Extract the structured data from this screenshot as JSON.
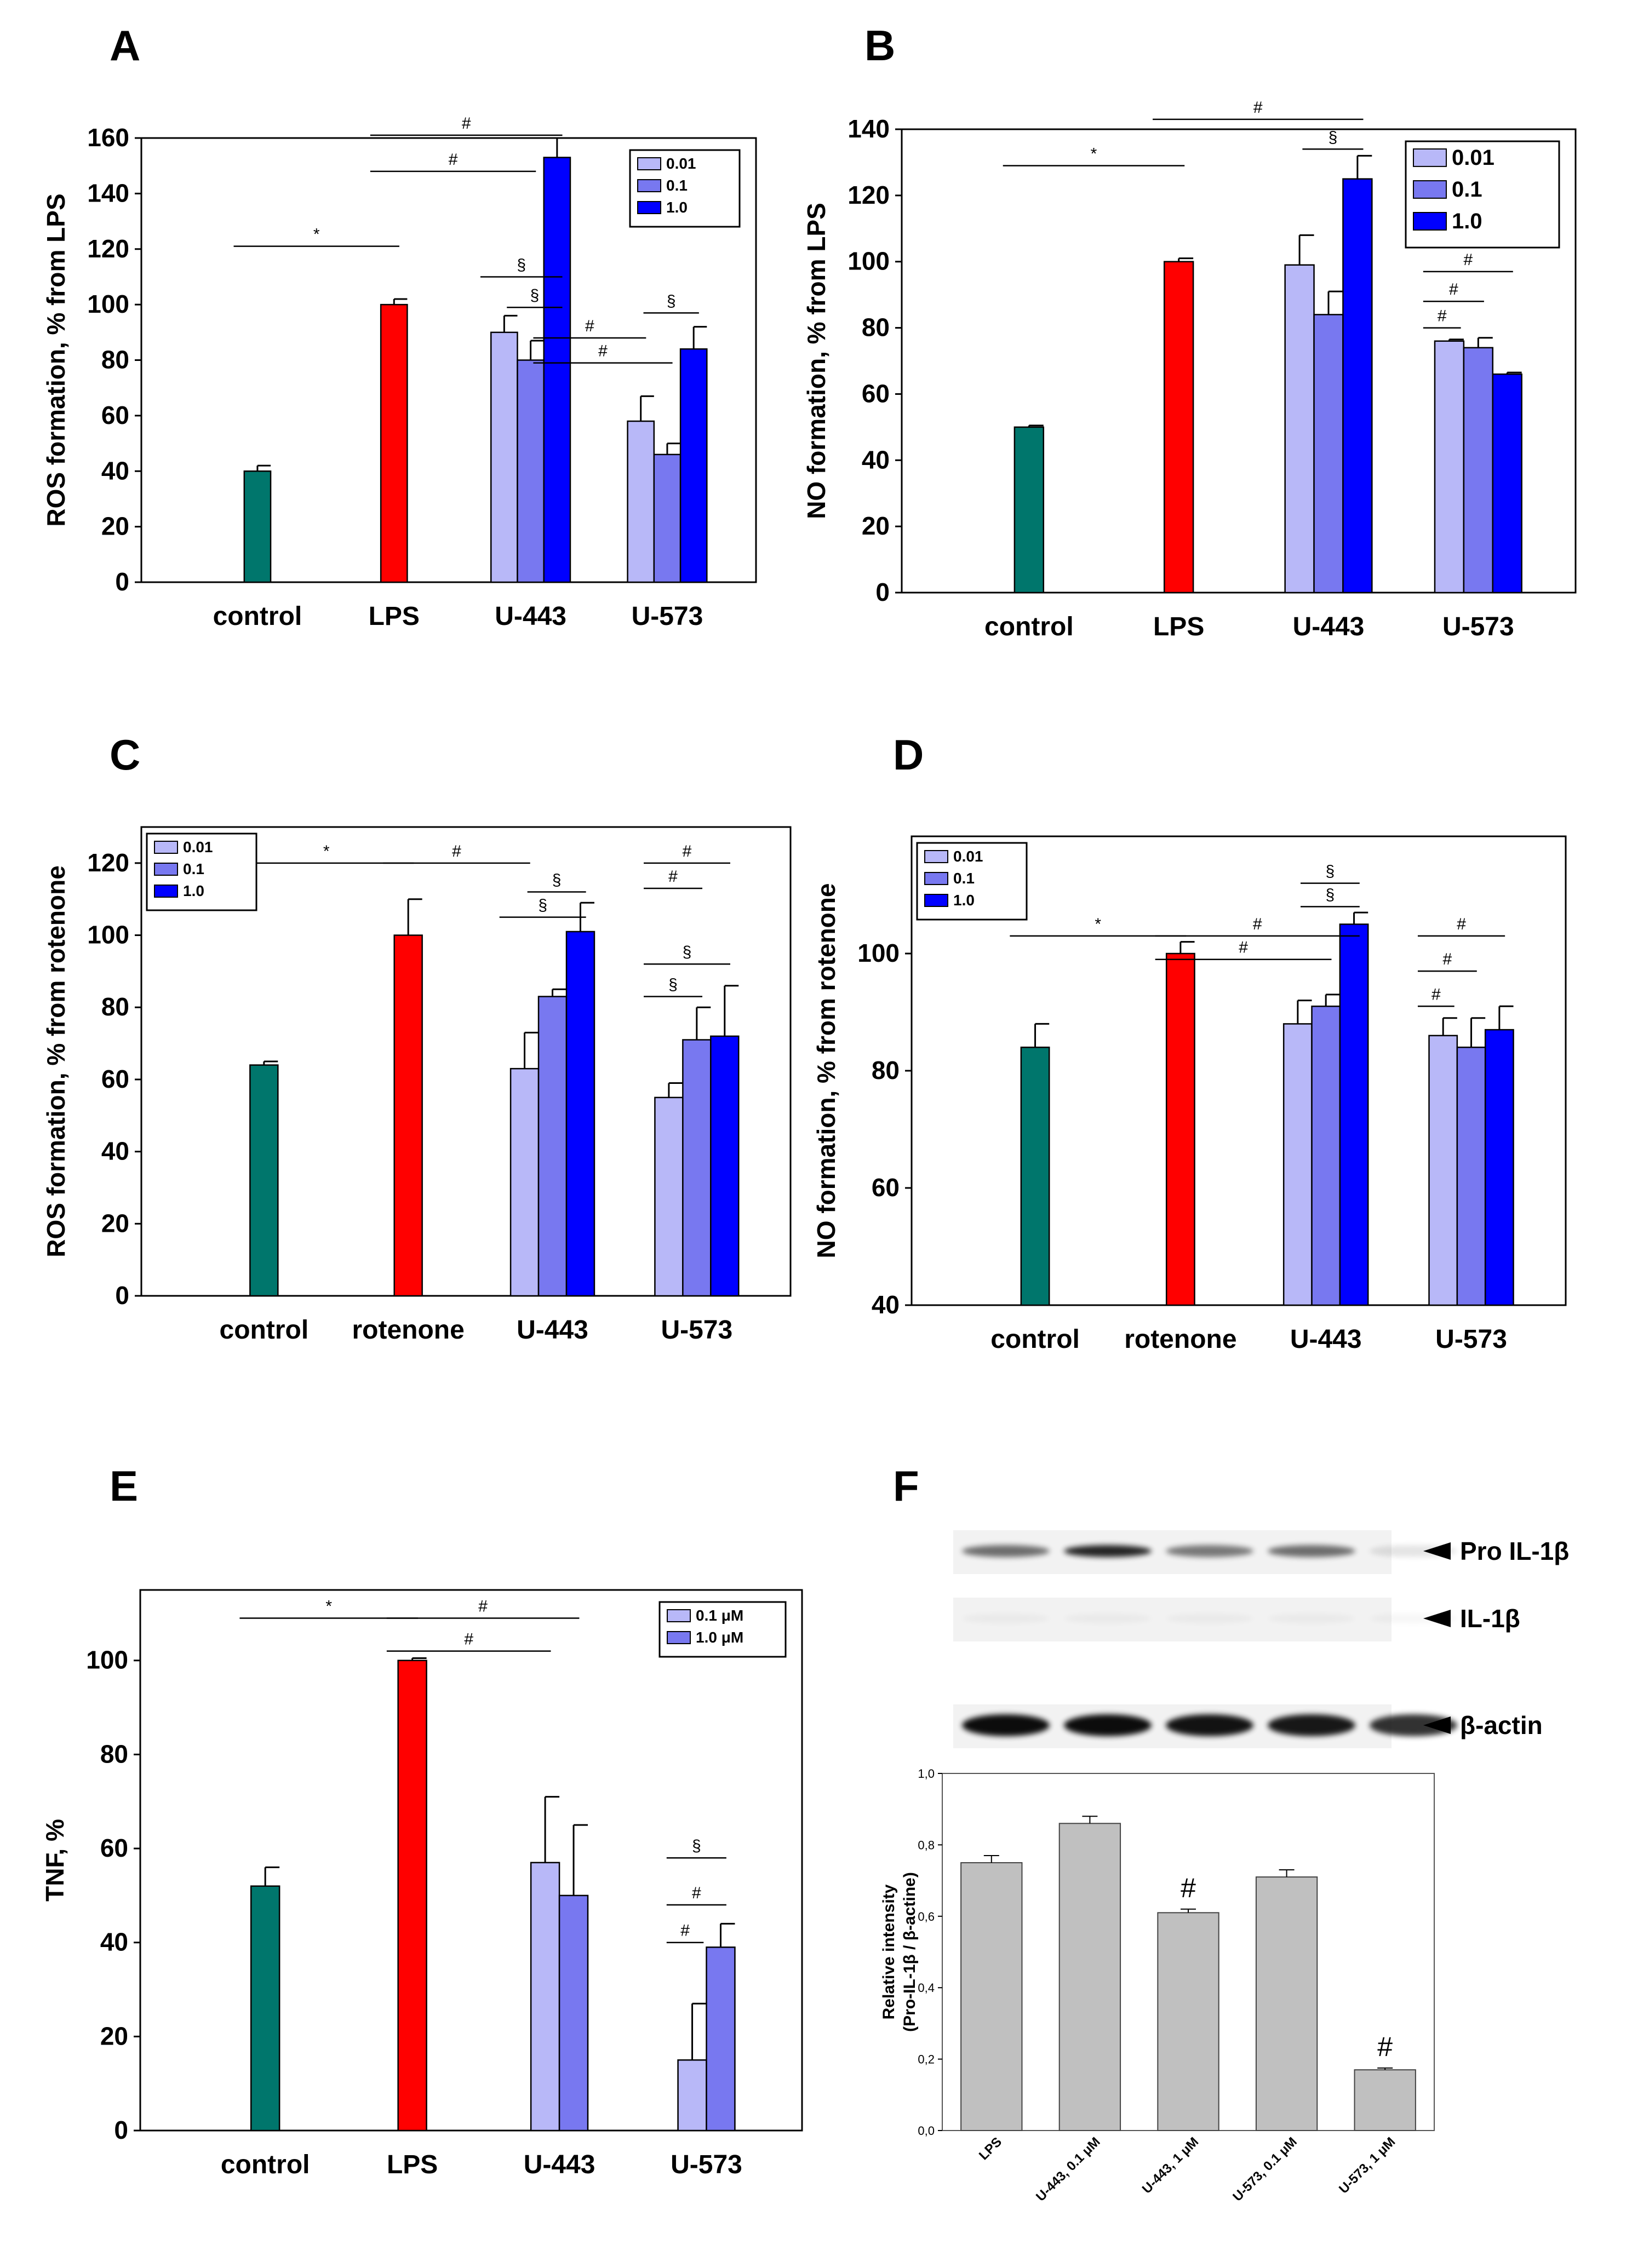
{
  "colors": {
    "control": "#00766C",
    "stimulus": "#FF0000",
    "c001": "#B8B8F8",
    "c01": "#7878F0",
    "c10": "#0000FF",
    "gray": "#C0C0C0",
    "blot_band": "#000000"
  },
  "chart_data": [
    {
      "id": "A",
      "panel_label": "A",
      "type": "bar",
      "ylabel": "ROS formation, % from LPS",
      "ylim": [
        0,
        160
      ],
      "yticks": [
        0,
        20,
        40,
        60,
        80,
        100,
        120,
        140,
        160
      ],
      "categories": [
        "control",
        "LPS",
        "U-443",
        "U-573"
      ],
      "legend": [
        "0.01",
        "0.1",
        "1.0"
      ],
      "legend_position": "top-right",
      "bars": [
        {
          "group": 0,
          "slot": "single",
          "color": "control",
          "value": 40,
          "err": 2
        },
        {
          "group": 1,
          "slot": "single",
          "color": "stimulus",
          "value": 100,
          "err": 2
        },
        {
          "group": 2,
          "slot": "s0",
          "color": "c001",
          "value": 90,
          "err": 6
        },
        {
          "group": 2,
          "slot": "s1",
          "color": "c01",
          "value": 80,
          "err": 7
        },
        {
          "group": 2,
          "slot": "s2",
          "color": "c10",
          "value": 153,
          "err": 7
        },
        {
          "group": 3,
          "slot": "s0",
          "color": "c001",
          "value": 58,
          "err": 9
        },
        {
          "group": 3,
          "slot": "s1",
          "color": "c01",
          "value": 46,
          "err": 4
        },
        {
          "group": 3,
          "slot": "s2",
          "color": "c10",
          "value": 84,
          "err": 8
        }
      ],
      "annotations": [
        {
          "symbol": "*",
          "x1": [
            0,
            "single"
          ],
          "x2": [
            1,
            "single"
          ],
          "y": 121
        },
        {
          "symbol": "#",
          "x1": [
            1,
            "single"
          ],
          "x2": [
            2,
            "s1"
          ],
          "y": 148
        },
        {
          "symbol": "#",
          "x1": [
            1,
            "single"
          ],
          "x2": [
            2,
            "s2"
          ],
          "y": 161
        },
        {
          "symbol": "§",
          "x1": [
            2,
            "s0"
          ],
          "x2": [
            2,
            "s2"
          ],
          "y": 110
        },
        {
          "symbol": "§",
          "x1": [
            2,
            "s1"
          ],
          "x2": [
            2,
            "s2"
          ],
          "y": 99
        },
        {
          "symbol": "#",
          "x1": [
            2,
            "s2"
          ],
          "x2": [
            3,
            "s0"
          ],
          "y": 88
        },
        {
          "symbol": "#",
          "x1": [
            2,
            "s2"
          ],
          "x2": [
            3,
            "s1"
          ],
          "y": 79
        },
        {
          "symbol": "§",
          "x1": [
            3,
            "s1"
          ],
          "x2": [
            3,
            "s2"
          ],
          "y": 97
        }
      ]
    },
    {
      "id": "B",
      "panel_label": "B",
      "type": "bar",
      "ylabel": "NO formation, % from LPS",
      "ylim": [
        0,
        140
      ],
      "yticks": [
        0,
        20,
        40,
        60,
        80,
        100,
        120,
        140
      ],
      "categories": [
        "control",
        "LPS",
        "U-443",
        "U-573"
      ],
      "legend": [
        "0.01",
        "0.1",
        "1.0"
      ],
      "legend_position": "top-right",
      "bars": [
        {
          "group": 0,
          "slot": "single",
          "color": "control",
          "value": 50,
          "err": 0.5
        },
        {
          "group": 1,
          "slot": "single",
          "color": "stimulus",
          "value": 100,
          "err": 1
        },
        {
          "group": 2,
          "slot": "s0",
          "color": "c001",
          "value": 99,
          "err": 9
        },
        {
          "group": 2,
          "slot": "s1",
          "color": "c01",
          "value": 84,
          "err": 7
        },
        {
          "group": 2,
          "slot": "s2",
          "color": "c10",
          "value": 125,
          "err": 7
        },
        {
          "group": 3,
          "slot": "s0",
          "color": "c001",
          "value": 76,
          "err": 0.5
        },
        {
          "group": 3,
          "slot": "s1",
          "color": "c01",
          "value": 74,
          "err": 3
        },
        {
          "group": 3,
          "slot": "s2",
          "color": "c10",
          "value": 66,
          "err": 0.5
        }
      ],
      "annotations": [
        {
          "symbol": "*",
          "x1": [
            0,
            "single"
          ],
          "x2": [
            1,
            "single"
          ],
          "y": 129
        },
        {
          "symbol": "#",
          "x1": [
            1,
            "single"
          ],
          "x2": [
            2,
            "s2"
          ],
          "y": 143
        },
        {
          "symbol": "§",
          "x1": [
            2,
            "s1"
          ],
          "x2": [
            2,
            "s2"
          ],
          "y": 134
        },
        {
          "symbol": "#",
          "x1": [
            3,
            "s0"
          ],
          "x2": [
            3,
            "s2"
          ],
          "y": 97
        },
        {
          "symbol": "#",
          "x1": [
            3,
            "s0"
          ],
          "x2": [
            3,
            "s1"
          ],
          "y": 88
        },
        {
          "symbol": "#",
          "x1": [
            3,
            "s0"
          ],
          "x2": [
            3,
            "s0"
          ],
          "y": 80
        }
      ]
    },
    {
      "id": "C",
      "panel_label": "C",
      "type": "bar",
      "ylabel": "ROS formation, % from rotenone",
      "ylim": [
        0,
        130
      ],
      "yticks": [
        0,
        20,
        40,
        60,
        80,
        100,
        120
      ],
      "categories": [
        "control",
        "rotenone",
        "U-443",
        "U-573"
      ],
      "legend": [
        "0.01",
        "0.1",
        "1.0"
      ],
      "legend_position": "top-left",
      "bars": [
        {
          "group": 0,
          "slot": "single",
          "color": "control",
          "value": 64,
          "err": 1
        },
        {
          "group": 1,
          "slot": "single",
          "color": "stimulus",
          "value": 100,
          "err": 10
        },
        {
          "group": 2,
          "slot": "s0",
          "color": "c001",
          "value": 63,
          "err": 10
        },
        {
          "group": 2,
          "slot": "s1",
          "color": "c01",
          "value": 83,
          "err": 2
        },
        {
          "group": 2,
          "slot": "s2",
          "color": "c10",
          "value": 101,
          "err": 8
        },
        {
          "group": 3,
          "slot": "s0",
          "color": "c001",
          "value": 55,
          "err": 4
        },
        {
          "group": 3,
          "slot": "s1",
          "color": "c01",
          "value": 71,
          "err": 9
        },
        {
          "group": 3,
          "slot": "s2",
          "color": "c10",
          "value": 72,
          "err": 14
        }
      ],
      "annotations": [
        {
          "symbol": "*",
          "x1": [
            0,
            "single"
          ],
          "x2": [
            1,
            "single"
          ],
          "y": 120
        },
        {
          "symbol": "#",
          "x1": [
            1,
            "single"
          ],
          "x2": [
            2,
            "s0"
          ],
          "y": 120
        },
        {
          "symbol": "§",
          "x1": [
            2,
            "s1"
          ],
          "x2": [
            2,
            "s2"
          ],
          "y": 112
        },
        {
          "symbol": "§",
          "x1": [
            2,
            "s0"
          ],
          "x2": [
            2,
            "s2"
          ],
          "y": 105
        },
        {
          "symbol": "#",
          "x1": [
            3,
            "s0"
          ],
          "x2": [
            3,
            "s2"
          ],
          "y": 120
        },
        {
          "symbol": "#",
          "x1": [
            3,
            "s0"
          ],
          "x2": [
            3,
            "s1"
          ],
          "y": 113
        },
        {
          "symbol": "§",
          "x1": [
            3,
            "s0"
          ],
          "x2": [
            3,
            "s2"
          ],
          "y": 92
        },
        {
          "symbol": "§",
          "x1": [
            3,
            "s0"
          ],
          "x2": [
            3,
            "s1"
          ],
          "y": 83
        }
      ]
    },
    {
      "id": "D",
      "panel_label": "D",
      "type": "bar",
      "ylabel": "NO formation, % from rotenone",
      "ylim": [
        40,
        120
      ],
      "yticks": [
        40,
        60,
        80,
        100
      ],
      "categories": [
        "control",
        "rotenone",
        "U-443",
        "U-573"
      ],
      "legend": [
        "0.01",
        "0.1",
        "1.0"
      ],
      "legend_position": "top-left",
      "bars": [
        {
          "group": 0,
          "slot": "single",
          "color": "control",
          "value": 84,
          "err": 4
        },
        {
          "group": 1,
          "slot": "single",
          "color": "stimulus",
          "value": 100,
          "err": 2
        },
        {
          "group": 2,
          "slot": "s0",
          "color": "c001",
          "value": 88,
          "err": 4
        },
        {
          "group": 2,
          "slot": "s1",
          "color": "c01",
          "value": 91,
          "err": 2
        },
        {
          "group": 2,
          "slot": "s2",
          "color": "c10",
          "value": 105,
          "err": 2
        },
        {
          "group": 3,
          "slot": "s0",
          "color": "c001",
          "value": 86,
          "err": 3
        },
        {
          "group": 3,
          "slot": "s1",
          "color": "c01",
          "value": 84,
          "err": 5
        },
        {
          "group": 3,
          "slot": "s2",
          "color": "c10",
          "value": 87,
          "err": 4
        }
      ],
      "annotations": [
        {
          "symbol": "*",
          "x1": [
            0,
            "single"
          ],
          "x2": [
            1,
            "single"
          ],
          "y": 103
        },
        {
          "symbol": "#",
          "x1": [
            1,
            "single"
          ],
          "x2": [
            2,
            "s2"
          ],
          "y": 103
        },
        {
          "symbol": "#",
          "x1": [
            1,
            "single"
          ],
          "x2": [
            2,
            "s1"
          ],
          "y": 99
        },
        {
          "symbol": "§",
          "x1": [
            2,
            "s1"
          ],
          "x2": [
            2,
            "s2"
          ],
          "y": 112
        },
        {
          "symbol": "§",
          "x1": [
            2,
            "s1"
          ],
          "x2": [
            2,
            "s2"
          ],
          "y": 108
        },
        {
          "symbol": "#",
          "x1": [
            3,
            "s0"
          ],
          "x2": [
            3,
            "s2"
          ],
          "y": 103
        },
        {
          "symbol": "#",
          "x1": [
            3,
            "s0"
          ],
          "x2": [
            3,
            "s1"
          ],
          "y": 97
        },
        {
          "symbol": "#",
          "x1": [
            3,
            "s0"
          ],
          "x2": [
            3,
            "s0"
          ],
          "y": 91
        }
      ]
    },
    {
      "id": "E",
      "panel_label": "E",
      "type": "bar",
      "ylabel": "TNF, %",
      "ylim": [
        0,
        115
      ],
      "yticks": [
        0,
        20,
        40,
        60,
        80,
        100
      ],
      "categories": [
        "control",
        "LPS",
        "U-443",
        "U-573"
      ],
      "legend": [
        "0.1 μM",
        "1.0 μM"
      ],
      "legend_position": "top-right",
      "bars": [
        {
          "group": 0,
          "slot": "single",
          "color": "control",
          "value": 52,
          "err": 4
        },
        {
          "group": 1,
          "slot": "single",
          "color": "stimulus",
          "value": 100,
          "err": 0.5
        },
        {
          "group": 2,
          "slot": "t0",
          "color": "c001",
          "value": 57,
          "err": 14
        },
        {
          "group": 2,
          "slot": "t1",
          "color": "c01",
          "value": 50,
          "err": 15
        },
        {
          "group": 3,
          "slot": "t0",
          "color": "c001",
          "value": 15,
          "err": 12
        },
        {
          "group": 3,
          "slot": "t1",
          "color": "c01",
          "value": 39,
          "err": 5
        }
      ],
      "annotations": [
        {
          "symbol": "*",
          "x1": [
            0,
            "single"
          ],
          "x2": [
            1,
            "single"
          ],
          "y": 109
        },
        {
          "symbol": "#",
          "x1": [
            1,
            "single"
          ],
          "x2": [
            2,
            "t1"
          ],
          "y": 109
        },
        {
          "symbol": "#",
          "x1": [
            1,
            "single"
          ],
          "x2": [
            2,
            "t0"
          ],
          "y": 102
        },
        {
          "symbol": "§",
          "x1": [
            3,
            "t0"
          ],
          "x2": [
            3,
            "t1"
          ],
          "y": 58
        },
        {
          "symbol": "#",
          "x1": [
            3,
            "t0"
          ],
          "x2": [
            3,
            "t1"
          ],
          "y": 48
        },
        {
          "symbol": "#",
          "x1": [
            3,
            "t0"
          ],
          "x2": [
            3,
            "t0"
          ],
          "y": 40
        }
      ]
    },
    {
      "id": "F",
      "panel_label": "F",
      "type": "bar",
      "ylabel": "Relative intensity\n(Pro-IL-1β / β-actine)",
      "ylim": [
        0,
        1.0
      ],
      "yticks": [
        0.0,
        0.2,
        0.4,
        0.6,
        0.8,
        1.0
      ],
      "ytick_labels": [
        "0,0",
        "0,2",
        "0,4",
        "0,6",
        "0,8",
        "1,0"
      ],
      "categories": [
        "LPS",
        "U-443, 0.1 μM",
        "U-443, 1 μM",
        "U-573, 0.1 μM",
        "U-573, 1 μM"
      ],
      "values": [
        0.75,
        0.86,
        0.61,
        0.71,
        0.17
      ],
      "errors": [
        0.02,
        0.02,
        0.01,
        0.02,
        0.005
      ],
      "marks": [
        "",
        "",
        "#",
        "",
        "#"
      ],
      "blot": {
        "rows": [
          {
            "label": "Pro IL-1β",
            "intensity": [
              0.55,
              0.85,
              0.5,
              0.55,
              0.1
            ]
          },
          {
            "label": "IL-1β",
            "intensity": [
              0.03,
              0.03,
              0.03,
              0.03,
              0.03
            ]
          },
          {
            "label": "β-actin",
            "intensity": [
              0.95,
              0.95,
              0.92,
              0.9,
              0.8
            ]
          }
        ]
      }
    }
  ]
}
